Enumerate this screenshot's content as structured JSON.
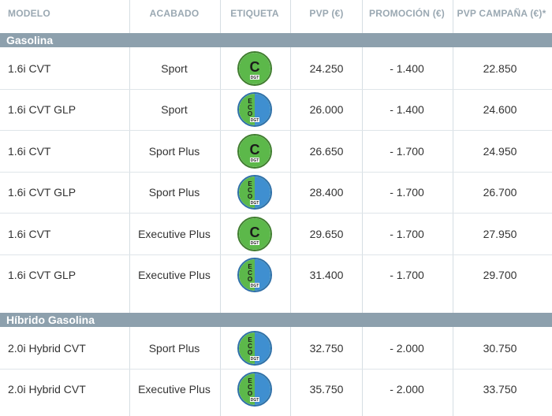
{
  "header": {
    "modelo": "MODELO",
    "acabado": "ACABADO",
    "etiqueta": "ETIQUETA",
    "pvp": "PVP (€)",
    "promocion": "PROMOCIÓN (€)",
    "pvp_campana": "PVP CAMPAÑA (€)*"
  },
  "sections": [
    {
      "title": "Gasolina",
      "rows": [
        {
          "modelo": "1.6i CVT",
          "acabado": "Sport",
          "etiqueta": "C",
          "pvp": "24.250",
          "promocion": "- 1.400",
          "campana": "22.850"
        },
        {
          "modelo": "1.6i CVT GLP",
          "acabado": "Sport",
          "etiqueta": "ECO",
          "pvp": "26.000",
          "promocion": "- 1.400",
          "campana": "24.600"
        },
        {
          "modelo": "1.6i CVT",
          "acabado": "Sport Plus",
          "etiqueta": "C",
          "pvp": "26.650",
          "promocion": "- 1.700",
          "campana": "24.950"
        },
        {
          "modelo": "1.6i CVT GLP",
          "acabado": "Sport Plus",
          "etiqueta": "ECO",
          "pvp": "28.400",
          "promocion": "- 1.700",
          "campana": "26.700"
        },
        {
          "modelo": "1.6i CVT",
          "acabado": "Executive Plus",
          "etiqueta": "C",
          "pvp": "29.650",
          "promocion": "- 1.700",
          "campana": "27.950"
        },
        {
          "modelo": "1.6i CVT GLP",
          "acabado": "Executive Plus",
          "etiqueta": "ECO",
          "pvp": "31.400",
          "promocion": "- 1.700",
          "campana": "29.700"
        }
      ]
    },
    {
      "title": "Híbrido Gasolina",
      "rows": [
        {
          "modelo": "2.0i Hybrid CVT",
          "acabado": "Sport Plus",
          "etiqueta": "ECO",
          "pvp": "32.750",
          "promocion": "- 2.000",
          "campana": "30.750"
        },
        {
          "modelo": "2.0i Hybrid CVT",
          "acabado": "Executive Plus",
          "etiqueta": "ECO",
          "pvp": "35.750",
          "promocion": "- 2.000",
          "campana": "33.750"
        }
      ]
    }
  ],
  "colors": {
    "band": "#8da0ad",
    "header_text": "#9aa8b2",
    "label_c_green": "#5cb84a",
    "label_eco_blue": "#3f8fd0"
  },
  "badge_logo_text": "DGT"
}
